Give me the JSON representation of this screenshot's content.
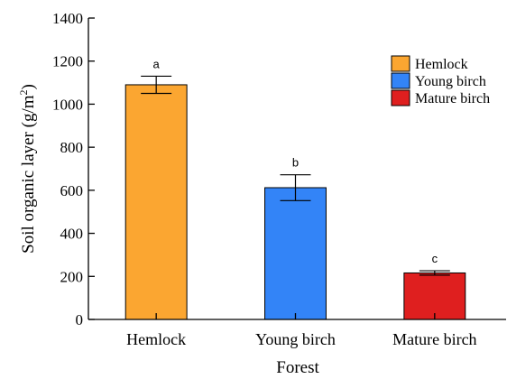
{
  "chart_data": {
    "type": "bar",
    "categories": [
      "Hemlock",
      "Young birch",
      "Mature birch"
    ],
    "values": [
      1090,
      612,
      216
    ],
    "errors": [
      40,
      60,
      10
    ],
    "significance": [
      "a",
      "b",
      "c"
    ],
    "colors": [
      "#FBA631",
      "#3384F7",
      "#DF1F1F"
    ],
    "xlabel": "Forest",
    "ylabel_main": "Soil organic layer (g/m",
    "ylabel_sup": "2",
    "ylabel_end": ")",
    "ylim": [
      0,
      1400
    ],
    "yticks": [
      0,
      200,
      400,
      600,
      800,
      1000,
      1200,
      1400
    ],
    "grid": false,
    "legend": {
      "placement": "top-right",
      "entries": [
        "Hemlock",
        "Young birch",
        "Mature birch"
      ]
    }
  }
}
